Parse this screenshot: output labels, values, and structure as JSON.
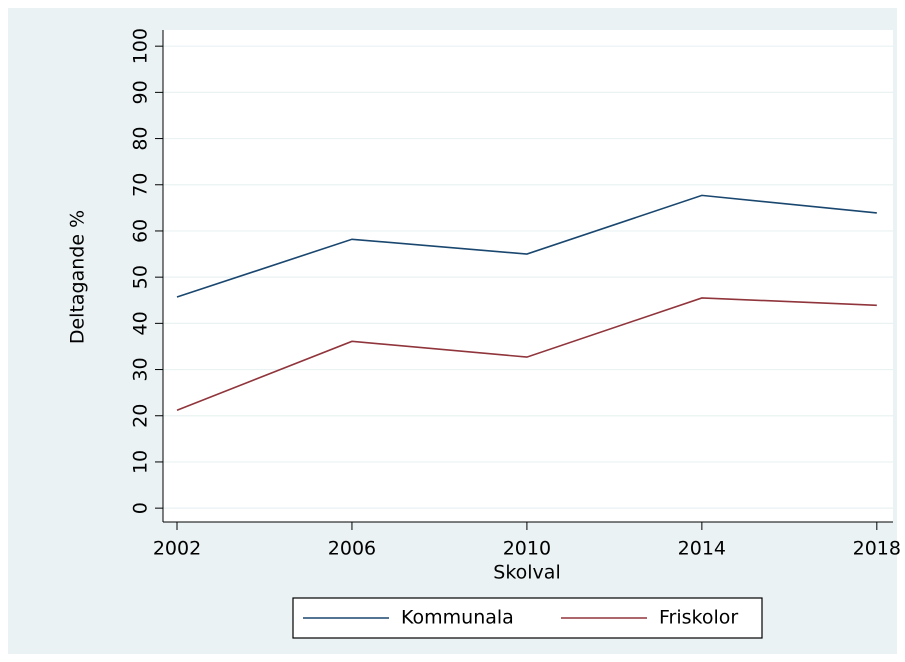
{
  "chart_data": {
    "type": "line",
    "x": [
      2002,
      2006,
      2010,
      2014,
      2018
    ],
    "xlabel": "Skolval",
    "ylabel": "Deltagande %",
    "series": [
      {
        "name": "Kommunala",
        "color": "#1a476f",
        "values": [
          45.7,
          58.2,
          55.0,
          67.7,
          63.9
        ]
      },
      {
        "name": "Friskolor",
        "color": "#90353b",
        "values": [
          21.2,
          36.1,
          32.7,
          45.5,
          43.9
        ]
      }
    ],
    "xlim": [
      2001.68,
      2018.37
    ],
    "xticks": [
      2002,
      2006,
      2010,
      2014,
      2018
    ],
    "ylim": [
      -3,
      103.5
    ],
    "yticks": [
      0,
      10,
      20,
      30,
      40,
      50,
      60,
      70,
      80,
      90,
      100
    ],
    "grid": true,
    "legend": "bottom"
  }
}
